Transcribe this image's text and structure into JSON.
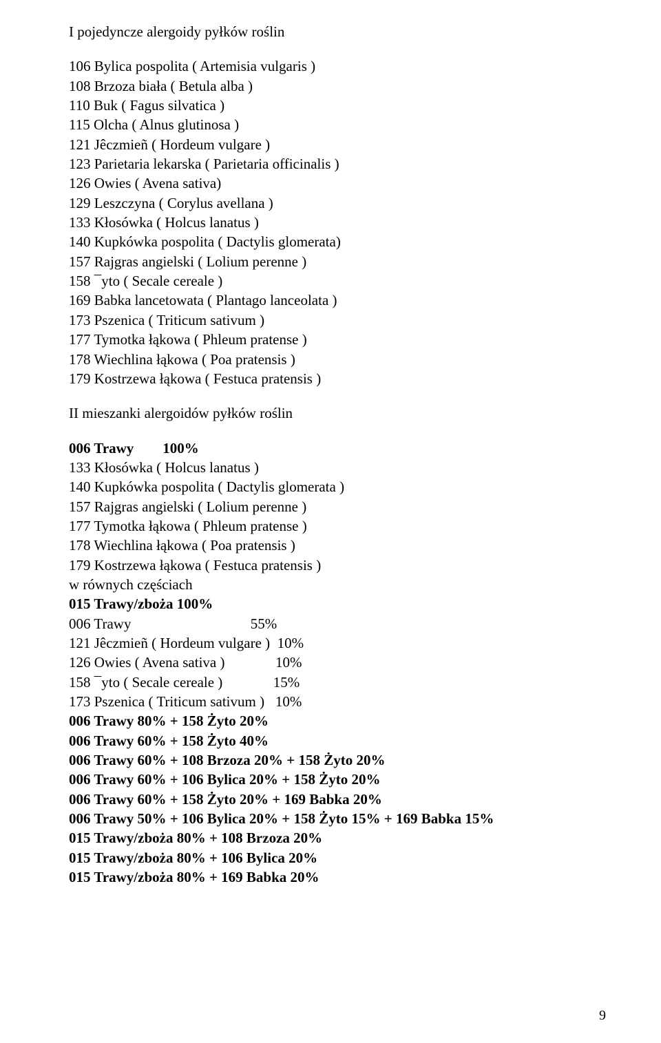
{
  "section1": {
    "title": "I pojedyncze alergoidy pyłków roślin",
    "items": [
      "106 Bylica pospolita ( Artemisia vulgaris )",
      "108 Brzoza biała ( Betula alba )",
      "110 Buk ( Fagus silvatica )",
      "115 Olcha ( Alnus glutinosa )",
      "121 Jêczmieñ ( Hordeum vulgare )",
      "123 Parietaria lekarska ( Parietaria officinalis )",
      "126 Owies ( Avena sativa)",
      "129 Leszczyna ( Corylus avellana )",
      "133 Kłosówka ( Holcus lanatus )",
      "140 Kupkówka pospolita ( Dactylis glomerata)",
      "157 Rajgras angielski ( Lolium perenne )",
      "158 ¯yto ( Secale cereale )",
      "169 Babka lancetowata ( Plantago lanceolata )",
      "173 Pszenica ( Triticum sativum )",
      "177 Tymotka łąkowa ( Phleum pratense )",
      "178 Wiechlina łąkowa ( Poa pratensis )",
      "179 Kostrzewa łąkowa ( Festuca pratensis )"
    ]
  },
  "section2": {
    "title": "II mieszanki alergoidów pyłków roślin"
  },
  "trawy_header": "006 Trawy        100%",
  "trawy_items": [
    "133 Kłosówka ( Holcus lanatus )",
    "140 Kupkówka pospolita ( Dactylis glomerata )",
    "157 Rajgras angielski ( Lolium perenne )",
    "177 Tymotka łąkowa ( Phleum pratense )",
    "178 Wiechlina łąkowa ( Poa pratensis )",
    "179 Kostrzewa łąkowa ( Festuca pratensis )",
    "w równych częściach"
  ],
  "mix_lines": [
    {
      "bold": true,
      "text": "015 Trawy/zboża 100%"
    },
    {
      "bold": false,
      "text": "006 Trawy                                 55%"
    },
    {
      "bold": false,
      "text": "121 Jêczmieñ ( Hordeum vulgare )  10%"
    },
    {
      "bold": false,
      "text": "126 Owies ( Avena sativa )              10%"
    },
    {
      "bold": false,
      "text": "158 ¯yto ( Secale cereale )              15%"
    },
    {
      "bold": false,
      "text": "173 Pszenica ( Triticum sativum )   10%"
    },
    {
      "bold": true,
      "text": "006 Trawy 80% + 158 Żyto 20%"
    },
    {
      "bold": true,
      "text": "006 Trawy 60% + 158 Żyto 40%"
    },
    {
      "bold": true,
      "text": "006 Trawy 60% + 108 Brzoza 20% + 158 Żyto 20%"
    },
    {
      "bold": true,
      "text": "006 Trawy 60% + 106 Bylica 20% + 158 Żyto 20%"
    },
    {
      "bold": true,
      "text": "006 Trawy 60% + 158 Żyto 20% + 169 Babka 20%"
    },
    {
      "bold": true,
      "text": "006 Trawy 50% + 106 Bylica 20% + 158 Żyto 15% + 169 Babka 15%"
    },
    {
      "bold": true,
      "text": "015 Trawy/zboża 80% + 108 Brzoza 20%"
    },
    {
      "bold": true,
      "text": "015 Trawy/zboża 80% + 106 Bylica 20%"
    },
    {
      "bold": true,
      "text": "015 Trawy/zboża 80% + 169 Babka 20%"
    }
  ],
  "page_number": "9"
}
